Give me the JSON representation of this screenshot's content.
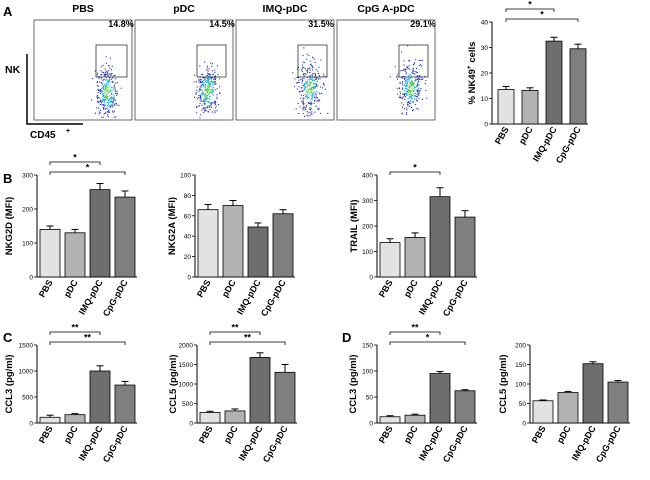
{
  "chart_data": [
    {
      "panel": "A",
      "type": "flow_cytometry",
      "plots": [
        {
          "title": "PBS",
          "percent": "14.8%"
        },
        {
          "title": "pDC",
          "percent": "14.5%"
        },
        {
          "title": "IMQ-pDC",
          "percent": "31.5%"
        },
        {
          "title": "CpG A-pDC",
          "percent": "29.1%"
        }
      ],
      "ylabel": "NK",
      "xlabel": "CD45",
      "xlabel_sup": "+"
    },
    {
      "panel": "",
      "type": "bar",
      "ylabel": "% NK49",
      "ylabel_sup": "+",
      "ylabel_tail": " cells",
      "categories": [
        "PBS",
        "pDC",
        "IMQ-pDC",
        "CpG-pDC"
      ],
      "values": [
        13.5,
        13.2,
        32.5,
        29.5
      ],
      "errors": [
        1.2,
        1,
        1.5,
        1.8
      ],
      "ylim": [
        0,
        40
      ],
      "ticks": [
        0,
        10,
        20,
        30,
        40
      ],
      "sig": [
        {
          "from": 0,
          "to": 2,
          "label": "*"
        },
        {
          "from": 0,
          "to": 3,
          "label": "*"
        }
      ]
    },
    {
      "panel": "B",
      "type": "bar",
      "ylabel": "NKG2D (MFI)",
      "categories": [
        "PBS",
        "pDC",
        "IMQ-pDC",
        "CpG-pDC"
      ],
      "values": [
        140,
        130,
        257,
        235
      ],
      "errors": [
        10,
        10,
        18,
        18
      ],
      "ylim": [
        0,
        300
      ],
      "ticks": [
        0,
        100,
        200,
        300
      ],
      "sig": [
        {
          "from": 0,
          "to": 2,
          "label": "*"
        },
        {
          "from": 0,
          "to": 3,
          "label": "*"
        }
      ]
    },
    {
      "panel": "",
      "type": "bar",
      "ylabel": "NKG2A (MFI)",
      "categories": [
        "PBS",
        "pDC",
        "IMQ-pDC",
        "CpG-pDC"
      ],
      "values": [
        66,
        70,
        49,
        62
      ],
      "errors": [
        5,
        5,
        4,
        4
      ],
      "ylim": [
        0,
        100
      ],
      "ticks": [
        0,
        20,
        40,
        60,
        80,
        100
      ],
      "sig": []
    },
    {
      "panel": "",
      "type": "bar",
      "ylabel": "TRAIL (MFI)",
      "categories": [
        "PBS",
        "pDC",
        "IMQ-pDC",
        "CpG-pDC"
      ],
      "values": [
        135,
        155,
        315,
        235
      ],
      "errors": [
        15,
        18,
        35,
        25
      ],
      "ylim": [
        0,
        400
      ],
      "ticks": [
        0,
        100,
        200,
        300,
        400
      ],
      "sig": [
        {
          "from": 0,
          "to": 2,
          "label": "*"
        }
      ]
    },
    {
      "panel": "C",
      "type": "bar",
      "ylabel": "CCL3 (pg/ml)",
      "categories": [
        "PBS",
        "pDC",
        "IMQ-pDC",
        "CpG-pDC"
      ],
      "values": [
        110,
        160,
        1000,
        730
      ],
      "errors": [
        40,
        20,
        100,
        70
      ],
      "ylim": [
        0,
        1500
      ],
      "ticks": [
        0,
        500,
        1000,
        1500
      ],
      "sig": [
        {
          "from": 0,
          "to": 2,
          "label": "**"
        },
        {
          "from": 0,
          "to": 3,
          "label": "**"
        }
      ]
    },
    {
      "panel": "",
      "type": "bar",
      "ylabel": "CCL5 (pg/ml)",
      "categories": [
        "PBS",
        "pDC",
        "IMQ-pDC",
        "CpG-pDC"
      ],
      "values": [
        270,
        310,
        1680,
        1300
      ],
      "errors": [
        30,
        50,
        120,
        200
      ],
      "ylim": [
        0,
        2000
      ],
      "ticks": [
        0,
        500,
        1000,
        1500,
        2000
      ],
      "sig": [
        {
          "from": 0,
          "to": 2,
          "label": "**"
        },
        {
          "from": 0,
          "to": 3,
          "label": "**"
        }
      ]
    },
    {
      "panel": "D",
      "type": "bar",
      "ylabel": "CCL3 (pg/ml)",
      "categories": [
        "PBS",
        "pDC",
        "IMQ-pDC",
        "CpG-pDC"
      ],
      "values": [
        12,
        15,
        95,
        62
      ],
      "errors": [
        2,
        2,
        4,
        2
      ],
      "ylim": [
        0,
        150
      ],
      "ticks": [
        0,
        50,
        100,
        150
      ],
      "sig": [
        {
          "from": 0,
          "to": 2,
          "label": "**"
        },
        {
          "from": 0,
          "to": 3,
          "label": "*"
        }
      ]
    },
    {
      "panel": "",
      "type": "bar",
      "ylabel": "CCL5 (pg/ml)",
      "categories": [
        "PBS",
        "pDC",
        "IMQ-pDC",
        "CpG-pDC"
      ],
      "values": [
        57,
        78,
        152,
        105
      ],
      "errors": [
        2,
        3,
        5,
        4
      ],
      "ylim": [
        0,
        200
      ],
      "ticks": [
        0,
        50,
        100,
        150,
        200
      ],
      "sig": []
    }
  ],
  "colors": {
    "bars": [
      "#e2e2e2",
      "#b2b2b2",
      "#6e6e6e",
      "#7f7f7f"
    ],
    "axis": "#000000",
    "gate": "#333333",
    "dot_outer": "#2233aa",
    "dot_mid": "#22aacc",
    "dot_core": "#55cc33"
  }
}
